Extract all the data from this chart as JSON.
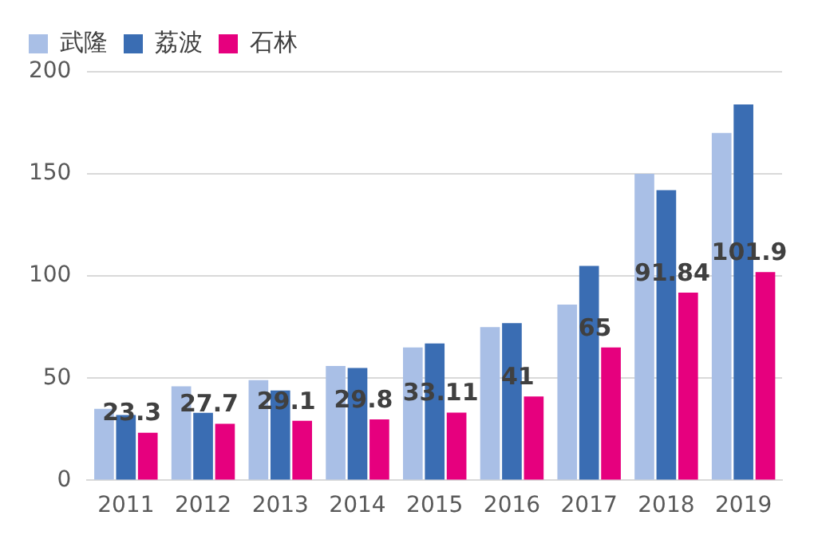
{
  "chart_data": {
    "type": "bar",
    "categories": [
      "2011",
      "2012",
      "2013",
      "2014",
      "2015",
      "2016",
      "2017",
      "2018",
      "2019"
    ],
    "series": [
      {
        "name": "武隆",
        "color": "#a9bfe6",
        "values": [
          35,
          46,
          49,
          56,
          65,
          75,
          86,
          150,
          170
        ]
      },
      {
        "name": "荔波",
        "color": "#3a6db3",
        "values": [
          32,
          33,
          44,
          55,
          67,
          77,
          105,
          142,
          184
        ]
      },
      {
        "name": "石林",
        "color": "#e6007e",
        "values": [
          23.3,
          27.7,
          29.1,
          29.8,
          33.11,
          41,
          65,
          91.84,
          101.9
        ],
        "value_labels": [
          "23.3",
          "27.7",
          "29.1",
          "29.8",
          "33.11",
          "41",
          "65",
          "91.84",
          "101.9"
        ]
      }
    ],
    "ylim": [
      0,
      200
    ],
    "yticks": [
      0,
      50,
      100,
      150,
      200
    ],
    "grid": "y",
    "legend": "top left"
  }
}
